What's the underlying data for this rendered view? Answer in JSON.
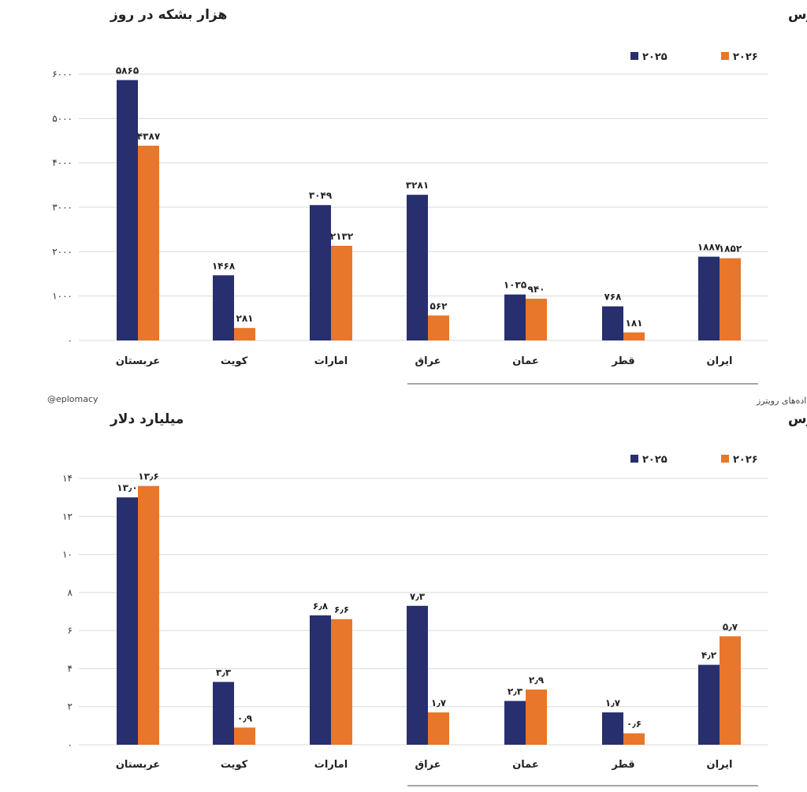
{
  "handle": "@eplomacy",
  "source": "منبع: نمودار اپلماسی بر حسب داده‌های رویترز",
  "colors": {
    "2025": "#272f6e",
    "2026": "#e8762b",
    "grid": "#d9d9d9"
  },
  "chart_data": [
    {
      "type": "bar",
      "title": "حجم صادرات نفت خام و میعانات گازی کشورهای پیرامون تنگه هرمز در ماه مارس",
      "ylabel": "هزار بشکه در روز",
      "categories": [
        "عربستان",
        "کویت",
        "امارات",
        "عراق",
        "عمان",
        "قطر",
        "ایران"
      ],
      "series": [
        {
          "name": "۲۰۲۵",
          "values": [
            5865,
            1468,
            3049,
            3281,
            1035,
            768,
            1887
          ]
        },
        {
          "name": "۲۰۲۶",
          "values": [
            4387,
            281,
            2132,
            562,
            940,
            181,
            1852
          ]
        }
      ],
      "ylim": [
        0,
        6000
      ],
      "yticks": [
        0,
        1000,
        2000,
        3000,
        4000,
        5000,
        6000
      ],
      "grid": true,
      "legend": "top-right"
    },
    {
      "type": "bar",
      "title": "ارزش صادرات نفت خام و میعانات گازی کشورهای پیرامون تنگه هرمز در ماه مارس",
      "ylabel": "میلیارد دلار",
      "categories": [
        "عربستان",
        "کویت",
        "امارات",
        "عراق",
        "عمان",
        "قطر",
        "ایران"
      ],
      "series": [
        {
          "name": "۲۰۲۵",
          "values": [
            13.0,
            3.3,
            6.8,
            7.3,
            2.3,
            1.7,
            4.2
          ]
        },
        {
          "name": "۲۰۲۶",
          "values": [
            13.6,
            0.9,
            6.6,
            1.7,
            2.9,
            0.6,
            5.7
          ]
        }
      ],
      "ylim": [
        0,
        14
      ],
      "yticks": [
        0,
        2,
        4,
        6,
        8,
        10,
        12,
        14
      ],
      "grid": true,
      "legend": "top-right"
    }
  ]
}
